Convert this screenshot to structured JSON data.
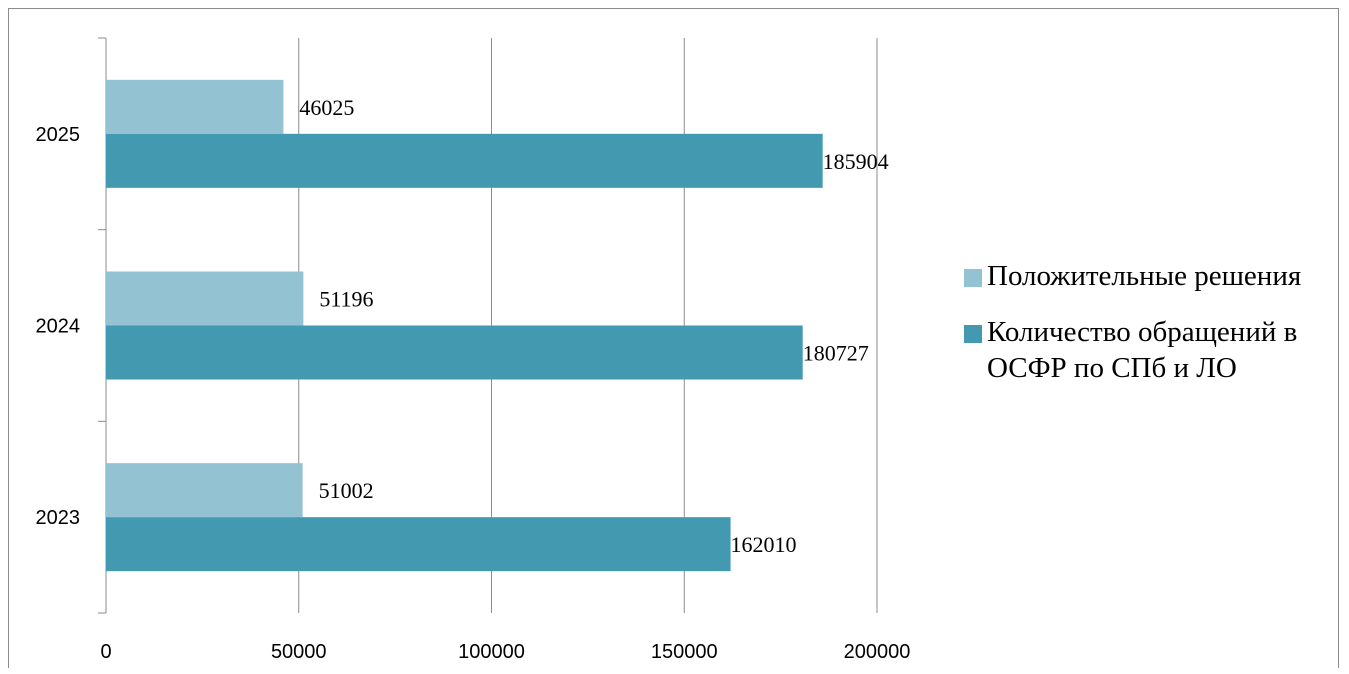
{
  "chart_data": {
    "type": "bar",
    "orientation": "horizontal",
    "categories": [
      "2023",
      "2024",
      "2025"
    ],
    "series": [
      {
        "name": "Положительные решения",
        "values": [
          51002,
          51196,
          46025
        ],
        "color": "#93c2d2"
      },
      {
        "name": "Количество обращений в ОСФР по СПб и ЛО",
        "values": [
          162010,
          180727,
          185904
        ],
        "color": "#4299b0"
      }
    ],
    "xlim": [
      0,
      200000
    ],
    "x_ticks": [
      "0",
      "50000",
      "100000",
      "150000",
      "200000"
    ],
    "x_tick_values": [
      0,
      50000,
      100000,
      150000,
      200000
    ],
    "grid": true,
    "legend_position": "right",
    "data_labels": true
  }
}
